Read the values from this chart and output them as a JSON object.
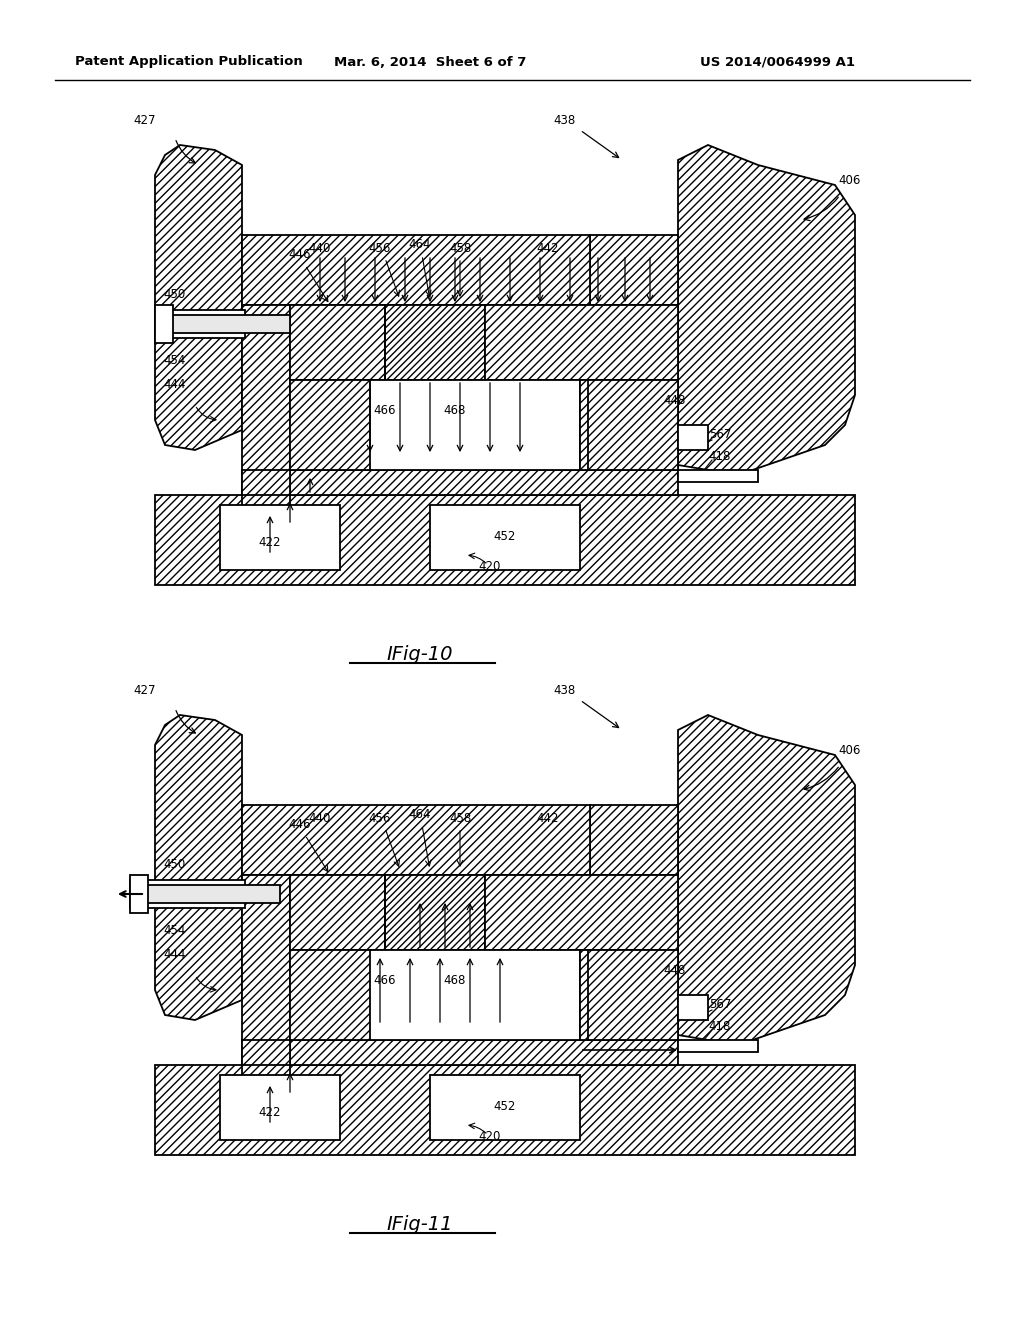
{
  "header_left": "Patent Application Publication",
  "header_center": "Mar. 6, 2014  Sheet 6 of 7",
  "header_right": "US 2014/0064999 A1",
  "fig10_label": "IFig-10",
  "fig11_label": "IFig-11",
  "bg_color": "#ffffff",
  "line_color": "#000000"
}
